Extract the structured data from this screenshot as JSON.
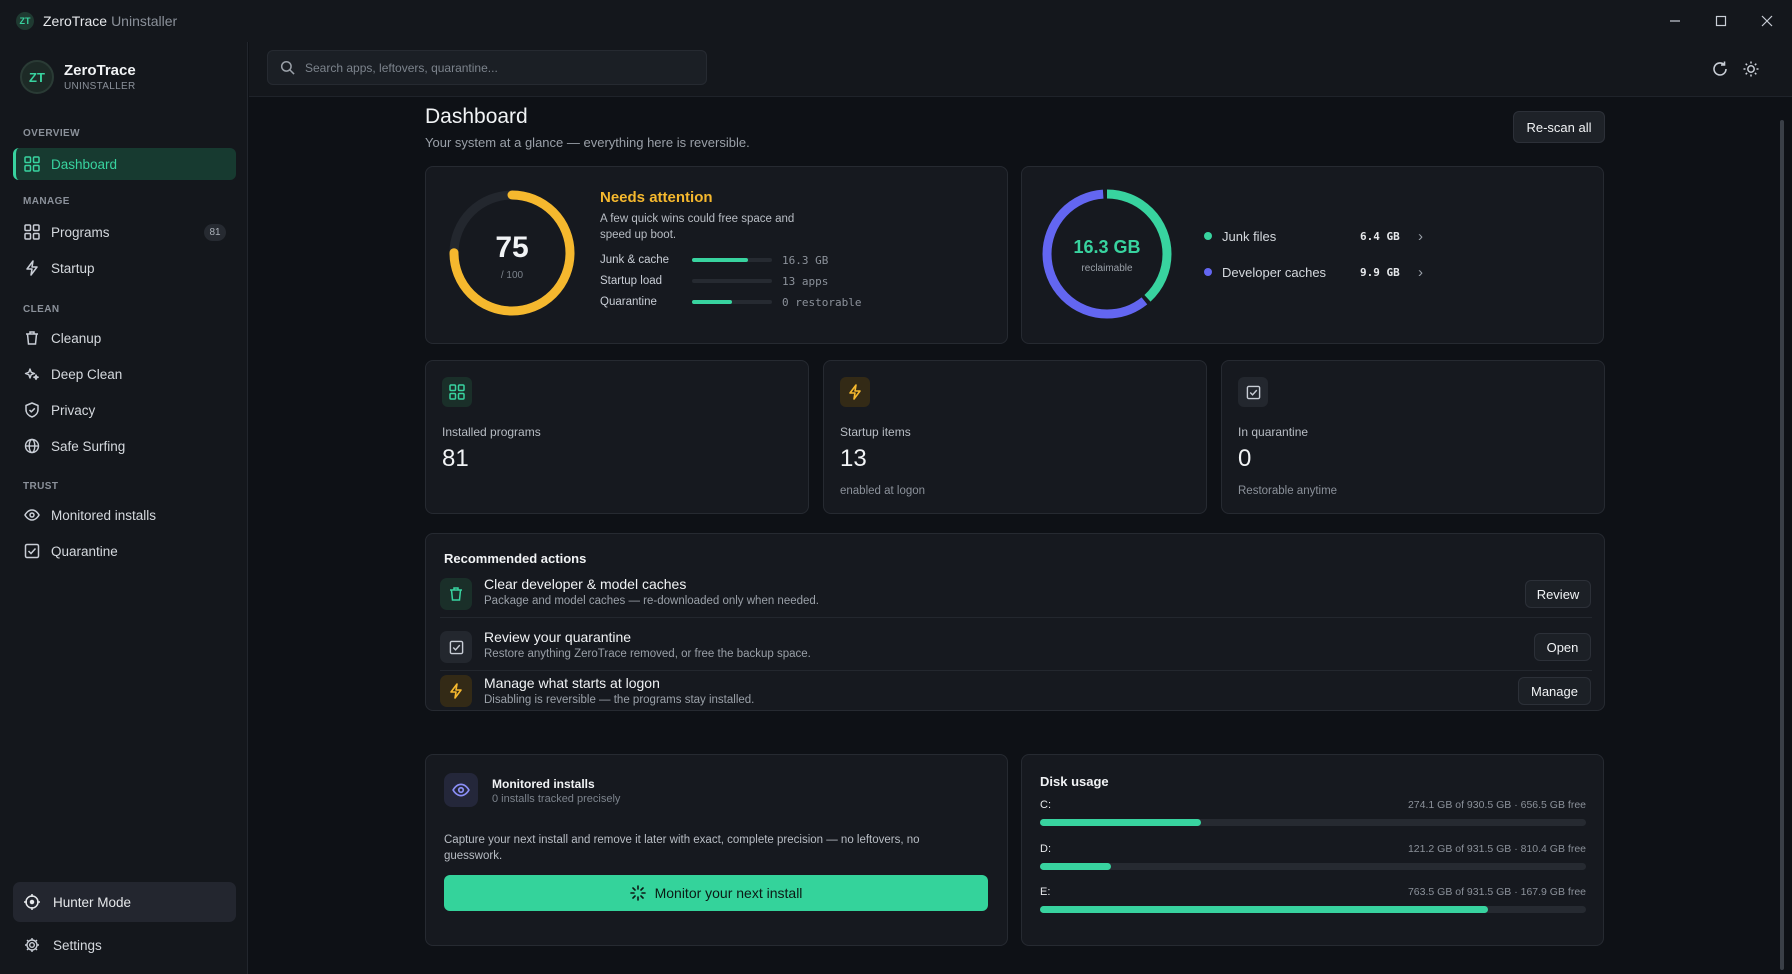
{
  "window": {
    "app_name": "ZeroTrace",
    "app_sub": "Uninstaller",
    "logo_text": "ZT"
  },
  "sidebar": {
    "brand_name": "ZeroTrace",
    "brand_sub": "UNINSTALLER",
    "brand_logo": "ZT",
    "sections": {
      "overview": "OVERVIEW",
      "manage": "MANAGE",
      "clean": "CLEAN",
      "trust": "TRUST"
    },
    "items": {
      "dashboard": "Dashboard",
      "programs": "Programs",
      "programs_badge": "81",
      "startup": "Startup",
      "cleanup": "Cleanup",
      "deep_clean": "Deep Clean",
      "privacy": "Privacy",
      "safe_surfing": "Safe Surfing",
      "monitored_installs": "Monitored installs",
      "quarantine": "Quarantine"
    },
    "hunter_mode": "Hunter Mode",
    "settings": "Settings"
  },
  "topbar": {
    "search_placeholder": "Search apps, leftovers, quarantine..."
  },
  "page": {
    "title": "Dashboard",
    "subtitle": "Your system at a glance — everything here is reversible.",
    "rescan": "Re-scan all"
  },
  "health": {
    "score": "75",
    "score_max": "/ 100",
    "score_fraction": 0.75,
    "status": "Needs attention",
    "description": "A few quick wins could free space and speed up boot.",
    "metrics": [
      {
        "label": "Junk & cache",
        "value": "16.3 GB",
        "level": 0.7
      },
      {
        "label": "Startup load",
        "value": "13 apps",
        "level": 0
      },
      {
        "label": "Quarantine",
        "value": "0 restorable",
        "level": 0.5
      }
    ]
  },
  "reclaim": {
    "value": "16.3 GB",
    "label": "reclaimable",
    "items": [
      {
        "name": "Junk files",
        "value": "6.4 GB",
        "gb": 6.4,
        "color": "#38d39f"
      },
      {
        "name": "Developer caches",
        "value": "9.9 GB",
        "gb": 9.9,
        "color": "#6366f1"
      }
    ]
  },
  "stats": {
    "programs": {
      "label": "Installed programs",
      "value": "81",
      "sub": ""
    },
    "startup": {
      "label": "Startup items",
      "value": "13",
      "sub": "enabled at logon"
    },
    "quarantine": {
      "label": "In quarantine",
      "value": "0",
      "sub": "Restorable anytime"
    }
  },
  "recommended": {
    "title": "Recommended actions",
    "items": [
      {
        "title": "Clear developer & model caches",
        "sub": "Package and model caches — re-downloaded only when needed.",
        "button": "Review"
      },
      {
        "title": "Review your quarantine",
        "sub": "Restore anything ZeroTrace removed, or free the backup space.",
        "button": "Open"
      },
      {
        "title": "Manage what starts at logon",
        "sub": "Disabling is reversible — the programs stay installed.",
        "button": "Manage"
      }
    ]
  },
  "monitor": {
    "title": "Monitored installs",
    "sub": "0 installs tracked precisely",
    "description": "Capture your next install and remove it later with exact, complete precision — no leftovers, no guesswork.",
    "button": "Monitor your next install"
  },
  "disk": {
    "title": "Disk usage",
    "drives": [
      {
        "name": "C:",
        "info": "274.1 GB of 930.5 GB · 656.5 GB free",
        "used_fraction": 0.295
      },
      {
        "name": "D:",
        "info": "121.2 GB of 931.5 GB · 810.4 GB free",
        "used_fraction": 0.13
      },
      {
        "name": "E:",
        "info": "763.5 GB of 931.5 GB · 167.9 GB free",
        "used_fraction": 0.82
      }
    ]
  },
  "colors": {
    "accent": "#38d39f",
    "warning": "#f5b82e",
    "developer": "#6366f1"
  }
}
